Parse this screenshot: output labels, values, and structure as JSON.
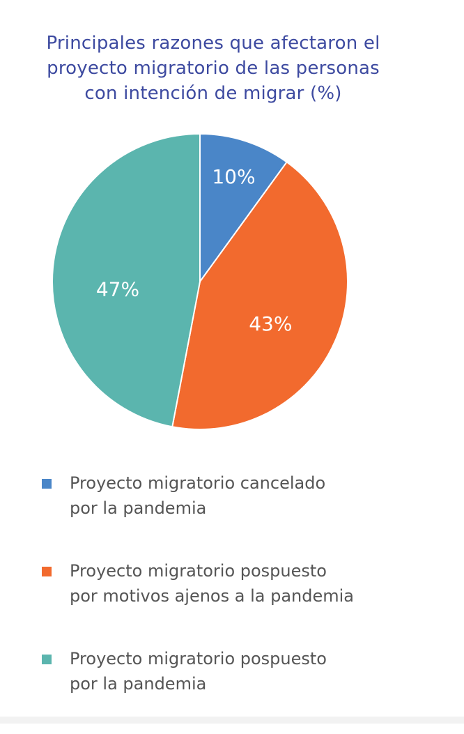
{
  "chart_data": {
    "type": "pie",
    "title_lines": [
      "Principales razones que afectaron el",
      "proyecto migratorio de las personas",
      "con intención de migrar (%)"
    ],
    "slices": [
      {
        "label_lines": [
          "Proyecto migratorio cancelado",
          "por la pandemia"
        ],
        "value": 10,
        "display": "10%",
        "color": "#4a86c8"
      },
      {
        "label_lines": [
          "Proyecto migratorio pospuesto",
          "por motivos ajenos a la pandemia"
        ],
        "value": 43,
        "display": "43%",
        "color": "#f26a2e"
      },
      {
        "label_lines": [
          "Proyecto migratorio pospuesto",
          "por la pandemia"
        ],
        "value": 47,
        "display": "47%",
        "color": "#5bb5ae"
      }
    ],
    "legend_placement": "bottom"
  }
}
